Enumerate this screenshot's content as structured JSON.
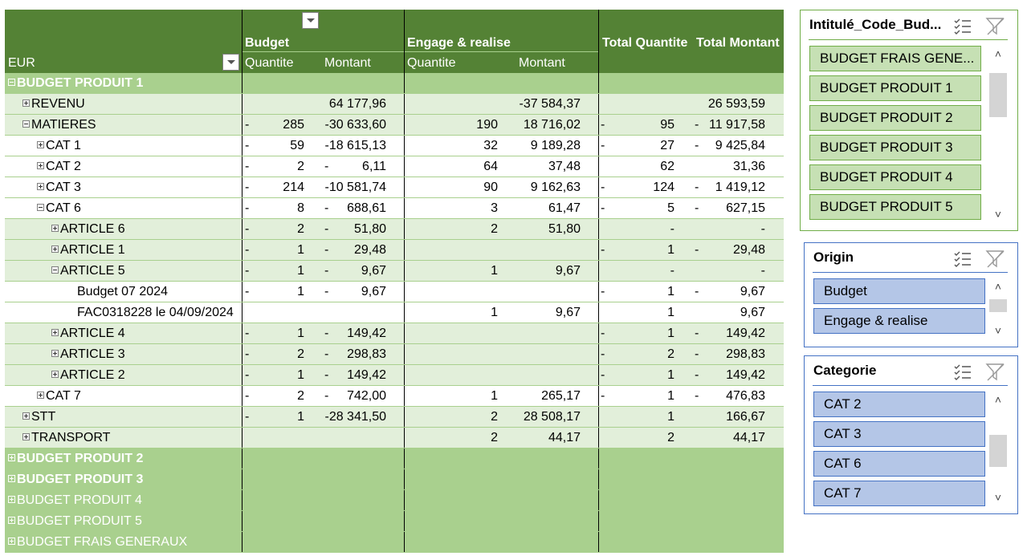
{
  "pivot": {
    "corner_label": "EUR",
    "col_groups": [
      "Budget",
      "Engage & realise",
      "Total Quantite",
      "Total Montant"
    ],
    "sub_cols": [
      "Quantite",
      "Montant",
      "Quantite",
      "Montant"
    ],
    "rows": [
      {
        "label": "BUDGET PRODUIT 1",
        "kind": "bp",
        "exp": "m",
        "indent": 0,
        "bq": "",
        "bqm": "",
        "bm": "",
        "bmm": "",
        "eq": "",
        "em": "",
        "tq": "",
        "tqm": "",
        "tm": "",
        "tmm": ""
      },
      {
        "label": "REVENU",
        "kind": "lt",
        "exp": "p",
        "indent": 1,
        "bq": "",
        "bqm": "",
        "bm": "64 177,96",
        "bmm": "",
        "eq": "",
        "em": "-37 584,37",
        "tq": "",
        "tqm": "",
        "tm": "26 593,59",
        "tmm": ""
      },
      {
        "label": "MATIERES",
        "kind": "lt",
        "exp": "m",
        "indent": 1,
        "bq": "285",
        "bqm": "-",
        "bm": "-30 633,60",
        "bmm": "",
        "eq": "190",
        "em": "18 716,02",
        "tq": "95",
        "tqm": "-",
        "tm": "11 917,58",
        "tmm": "-"
      },
      {
        "label": "CAT 1",
        "kind": "wh",
        "exp": "p",
        "indent": 2,
        "bq": "59",
        "bqm": "-",
        "bm": "-18 615,13",
        "bmm": "",
        "eq": "32",
        "em": "9 189,28",
        "tq": "27",
        "tqm": "-",
        "tm": "9 425,84",
        "tmm": "-"
      },
      {
        "label": "CAT 2",
        "kind": "wh",
        "exp": "p",
        "indent": 2,
        "bq": "2",
        "bqm": "-",
        "bm": "6,11",
        "bmm": "-",
        "eq": "64",
        "em": "37,48",
        "tq": "62",
        "tqm": "",
        "tm": "31,36",
        "tmm": ""
      },
      {
        "label": "CAT 3",
        "kind": "wh",
        "exp": "p",
        "indent": 2,
        "bq": "214",
        "bqm": "-",
        "bm": "-10 581,74",
        "bmm": "",
        "eq": "90",
        "em": "9 162,63",
        "tq": "124",
        "tqm": "-",
        "tm": "1 419,12",
        "tmm": "-"
      },
      {
        "label": "CAT 6",
        "kind": "wh",
        "exp": "m",
        "indent": 2,
        "bq": "8",
        "bqm": "-",
        "bm": "688,61",
        "bmm": "-",
        "eq": "3",
        "em": "61,47",
        "tq": "5",
        "tqm": "-",
        "tm": "627,15",
        "tmm": "-"
      },
      {
        "label": "ARTICLE 6",
        "kind": "lt",
        "exp": "p",
        "indent": 3,
        "bq": "2",
        "bqm": "-",
        "bm": "51,80",
        "bmm": "-",
        "eq": "2",
        "em": "51,80",
        "tq": "-",
        "tqm": "",
        "tm": "-",
        "tmm": ""
      },
      {
        "label": "ARTICLE 1",
        "kind": "lt",
        "exp": "p",
        "indent": 3,
        "bq": "1",
        "bqm": "-",
        "bm": "29,48",
        "bmm": "-",
        "eq": "",
        "em": "",
        "tq": "1",
        "tqm": "-",
        "tm": "29,48",
        "tmm": "-"
      },
      {
        "label": "ARTICLE 5",
        "kind": "lt",
        "exp": "m",
        "indent": 3,
        "bq": "1",
        "bqm": "-",
        "bm": "9,67",
        "bmm": "-",
        "eq": "1",
        "em": "9,67",
        "tq": "-",
        "tqm": "",
        "tm": "-",
        "tmm": ""
      },
      {
        "label": "Budget 07 2024",
        "kind": "wh",
        "exp": "",
        "indent": 4,
        "bq": "1",
        "bqm": "-",
        "bm": "9,67",
        "bmm": "-",
        "eq": "",
        "em": "",
        "tq": "1",
        "tqm": "-",
        "tm": "9,67",
        "tmm": "-"
      },
      {
        "label": "FAC0318228 le 04/09/2024",
        "kind": "wh",
        "exp": "",
        "indent": 4,
        "bq": "",
        "bqm": "",
        "bm": "",
        "bmm": "",
        "eq": "1",
        "em": "9,67",
        "tq": "1",
        "tqm": "",
        "tm": "9,67",
        "tmm": ""
      },
      {
        "label": "ARTICLE 4",
        "kind": "lt",
        "exp": "p",
        "indent": 3,
        "bq": "1",
        "bqm": "-",
        "bm": "149,42",
        "bmm": "-",
        "eq": "",
        "em": "",
        "tq": "1",
        "tqm": "-",
        "tm": "149,42",
        "tmm": "-"
      },
      {
        "label": "ARTICLE 3",
        "kind": "lt",
        "exp": "p",
        "indent": 3,
        "bq": "2",
        "bqm": "-",
        "bm": "298,83",
        "bmm": "-",
        "eq": "",
        "em": "",
        "tq": "2",
        "tqm": "-",
        "tm": "298,83",
        "tmm": "-"
      },
      {
        "label": "ARTICLE 2",
        "kind": "lt",
        "exp": "p",
        "indent": 3,
        "bq": "1",
        "bqm": "-",
        "bm": "149,42",
        "bmm": "-",
        "eq": "",
        "em": "",
        "tq": "1",
        "tqm": "-",
        "tm": "149,42",
        "tmm": "-"
      },
      {
        "label": "CAT 7",
        "kind": "wh",
        "exp": "p",
        "indent": 2,
        "bq": "2",
        "bqm": "-",
        "bm": "742,00",
        "bmm": "-",
        "eq": "1",
        "em": "265,17",
        "tq": "1",
        "tqm": "-",
        "tm": "476,83",
        "tmm": "-"
      },
      {
        "label": "STT",
        "kind": "lt",
        "exp": "p",
        "indent": 1,
        "bq": "1",
        "bqm": "-",
        "bm": "-28 341,50",
        "bmm": "",
        "eq": "2",
        "em": "28 508,17",
        "tq": "1",
        "tqm": "",
        "tm": "166,67",
        "tmm": ""
      },
      {
        "label": "TRANSPORT",
        "kind": "lt",
        "exp": "p",
        "indent": 1,
        "bq": "",
        "bqm": "",
        "bm": "",
        "bmm": "",
        "eq": "2",
        "em": "44,17",
        "tq": "2",
        "tqm": "",
        "tm": "44,17",
        "tmm": ""
      },
      {
        "label": "BUDGET PRODUIT 2",
        "kind": "bp",
        "exp": "p",
        "indent": 0,
        "bq": "",
        "bqm": "",
        "bm": "",
        "bmm": "",
        "eq": "",
        "em": "",
        "tq": "",
        "tqm": "",
        "tm": "",
        "tmm": ""
      },
      {
        "label": "BUDGET PRODUIT 3",
        "kind": "bp",
        "exp": "p",
        "indent": 0,
        "bq": "",
        "bqm": "",
        "bm": "",
        "bmm": "",
        "eq": "",
        "em": "",
        "tq": "",
        "tqm": "",
        "tm": "",
        "tmm": ""
      },
      {
        "label": "BUDGET PRODUIT 4",
        "kind": "bp dim",
        "exp": "p",
        "indent": 0,
        "bq": "",
        "bqm": "",
        "bm": "",
        "bmm": "",
        "eq": "",
        "em": "",
        "tq": "",
        "tqm": "",
        "tm": "",
        "tmm": ""
      },
      {
        "label": "BUDGET PRODUIT 5",
        "kind": "bp dim",
        "exp": "p",
        "indent": 0,
        "bq": "",
        "bqm": "",
        "bm": "",
        "bmm": "",
        "eq": "",
        "em": "",
        "tq": "",
        "tqm": "",
        "tm": "",
        "tmm": ""
      },
      {
        "label": "BUDGET FRAIS GENERAUX",
        "kind": "bp dim",
        "exp": "p",
        "indent": 0,
        "bq": "",
        "bqm": "",
        "bm": "",
        "bmm": "",
        "eq": "",
        "em": "",
        "tq": "",
        "tqm": "",
        "tm": "",
        "tmm": ""
      }
    ]
  },
  "slicers": [
    {
      "name": "slicer-budget",
      "title": "Intitulé_Code_Bud...",
      "border": "#70ad47",
      "item_bg": "#c6e0b4",
      "item_border": "#70ad47",
      "items": [
        "BUDGET FRAIS GENE...",
        "BUDGET PRODUIT 1",
        "BUDGET PRODUIT 2",
        "BUDGET PRODUIT 3",
        "BUDGET PRODUIT 4",
        "BUDGET PRODUIT 5"
      ]
    },
    {
      "name": "slicer-origin",
      "title": "Origin",
      "border": "#4472c4",
      "item_bg": "#b4c6e7",
      "item_border": "#4472c4",
      "items": [
        "Budget",
        "Engage & realise"
      ]
    },
    {
      "name": "slicer-categorie",
      "title": "Categorie",
      "border": "#4472c4",
      "item_bg": "#b4c6e7",
      "item_border": "#4472c4",
      "items": [
        "CAT 2",
        "CAT 3",
        "CAT 6",
        "CAT 7"
      ]
    }
  ],
  "icons": {
    "multiselect": "multi-select-icon",
    "clear_filter": "clear-filter-icon",
    "scroll_up": "scroll-up-icon",
    "scroll_down": "scroll-down-icon"
  }
}
